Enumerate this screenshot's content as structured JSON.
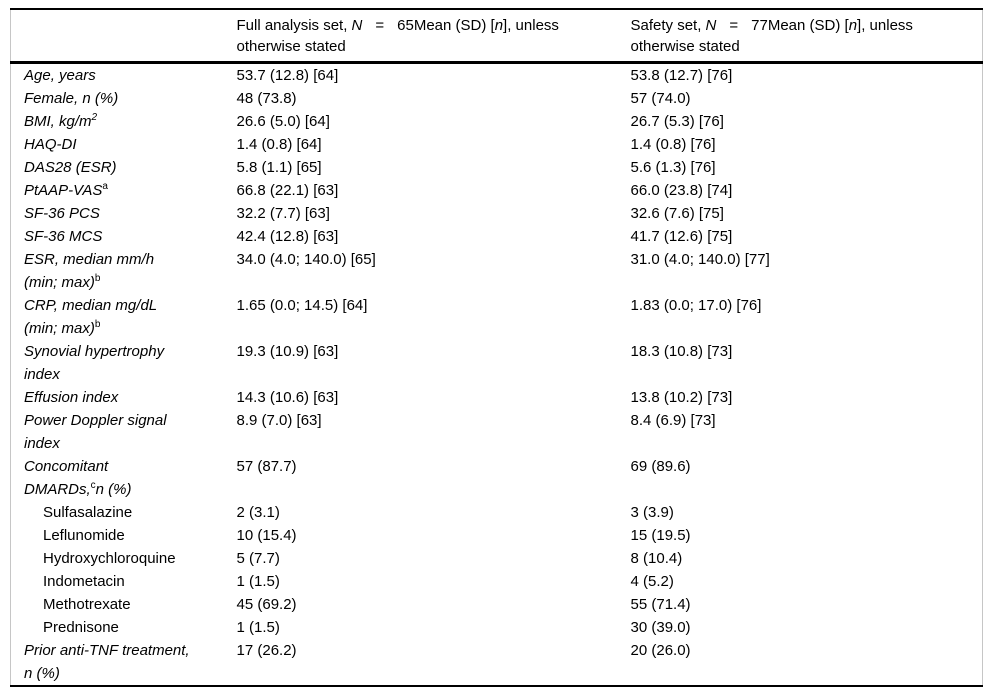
{
  "table": {
    "description": "Baseline characteristics table",
    "header": {
      "col1_parts": [],
      "col2_parts": [
        {
          "t": "Full analysis set, "
        },
        {
          "t": "N",
          "i": true
        },
        {
          "t": "=",
          "eq": true
        },
        {
          "t": "65Mean (SD) ["
        },
        {
          "t": "n",
          "i": true
        },
        {
          "t": "], unless"
        },
        {
          "br": true
        },
        {
          "t": "otherwise stated"
        }
      ],
      "col3_parts": [
        {
          "t": "Safety set, "
        },
        {
          "t": "N",
          "i": true
        },
        {
          "t": "=",
          "eq": true
        },
        {
          "t": "77Mean (SD) ["
        },
        {
          "t": "n",
          "i": true
        },
        {
          "t": "], unless"
        },
        {
          "br": true
        },
        {
          "t": "otherwise stated"
        }
      ]
    },
    "rows": [
      {
        "label_parts": [
          {
            "t": "Age, years",
            "i": true
          }
        ],
        "indent": false,
        "values": [
          "53.7 (12.8) [64]",
          "53.8 (12.7) [76]"
        ]
      },
      {
        "label_parts": [
          {
            "t": "Female, n (%)",
            "i": true
          }
        ],
        "indent": false,
        "values": [
          "48 (73.8)",
          "57 (74.0)"
        ]
      },
      {
        "label_parts": [
          {
            "t": "BMI, kg/m",
            "i": true
          },
          {
            "t": "2",
            "sup": true,
            "i": true
          }
        ],
        "indent": false,
        "values": [
          "26.6 (5.0) [64]",
          "26.7 (5.3) [76]"
        ]
      },
      {
        "label_parts": [
          {
            "t": "HAQ-DI",
            "i": true
          }
        ],
        "indent": false,
        "values": [
          "1.4 (0.8) [64]",
          "1.4 (0.8) [76]"
        ]
      },
      {
        "label_parts": [
          {
            "t": "DAS28 (ESR)",
            "i": true
          }
        ],
        "indent": false,
        "values": [
          "5.8 (1.1) [65]",
          "5.6 (1.3) [76]"
        ]
      },
      {
        "label_parts": [
          {
            "t": "PtAAP-VAS",
            "i": true
          },
          {
            "t": "a",
            "sup": true
          }
        ],
        "indent": false,
        "values": [
          "66.8 (22.1) [63]",
          "66.0 (23.8) [74]"
        ]
      },
      {
        "label_parts": [
          {
            "t": "SF-36 PCS",
            "i": true
          }
        ],
        "indent": false,
        "values": [
          "32.2 (7.7) [63]",
          "32.6 (7.6) [75]"
        ]
      },
      {
        "label_parts": [
          {
            "t": "SF-36 MCS",
            "i": true
          }
        ],
        "indent": false,
        "values": [
          "42.4 (12.8) [63]",
          "41.7 (12.6) [75]"
        ]
      },
      {
        "label_parts": [
          {
            "t": "ESR, median mm/h",
            "i": true
          },
          {
            "br": true
          },
          {
            "t": "(min; max)",
            "i": true
          },
          {
            "t": "b",
            "sup": true
          }
        ],
        "indent": false,
        "values": [
          "34.0 (4.0; 140.0) [65]",
          "31.0 (4.0; 140.0) [77]"
        ]
      },
      {
        "label_parts": [
          {
            "t": "CRP, median mg/dL",
            "i": true
          },
          {
            "br": true
          },
          {
            "t": "(min; max)",
            "i": true
          },
          {
            "t": "b",
            "sup": true
          }
        ],
        "indent": false,
        "values": [
          "1.65 (0.0; 14.5) [64]",
          "1.83 (0.0; 17.0) [76]"
        ]
      },
      {
        "label_parts": [
          {
            "t": "Synovial hypertrophy",
            "i": true
          },
          {
            "br": true
          },
          {
            "t": "index",
            "i": true
          }
        ],
        "indent": false,
        "values": [
          "19.3 (10.9) [63]",
          "18.3 (10.8) [73]"
        ]
      },
      {
        "label_parts": [
          {
            "t": "Effusion index",
            "i": true
          }
        ],
        "indent": false,
        "values": [
          "14.3 (10.6) [63]",
          "13.8 (10.2) [73]"
        ]
      },
      {
        "label_parts": [
          {
            "t": "Power Doppler signal",
            "i": true
          },
          {
            "br": true
          },
          {
            "t": "index",
            "i": true
          }
        ],
        "indent": false,
        "values": [
          "8.9 (7.0) [63]",
          "8.4 (6.9) [73]"
        ]
      },
      {
        "label_parts": [
          {
            "t": "Concomitant",
            "i": true
          },
          {
            "br": true
          },
          {
            "t": "DMARDs,",
            "i": true
          },
          {
            "t": "c",
            "sup": true
          },
          {
            "t": "n (%)",
            "i": true
          }
        ],
        "indent": false,
        "values": [
          "57 (87.7)",
          "69 (89.6)"
        ]
      },
      {
        "label_parts": [
          {
            "t": "Sulfasalazine"
          }
        ],
        "indent": true,
        "values": [
          "2 (3.1)",
          "3 (3.9)"
        ]
      },
      {
        "label_parts": [
          {
            "t": "Leflunomide"
          }
        ],
        "indent": true,
        "values": [
          "10 (15.4)",
          "15 (19.5)"
        ]
      },
      {
        "label_parts": [
          {
            "t": "Hydroxychloroquine"
          }
        ],
        "indent": true,
        "values": [
          "5 (7.7)",
          "8 (10.4)"
        ]
      },
      {
        "label_parts": [
          {
            "t": "Indometacin"
          }
        ],
        "indent": true,
        "values": [
          "1 (1.5)",
          "4 (5.2)"
        ]
      },
      {
        "label_parts": [
          {
            "t": "Methotrexate"
          }
        ],
        "indent": true,
        "values": [
          "45 (69.2)",
          "55 (71.4)"
        ]
      },
      {
        "label_parts": [
          {
            "t": "Prednisone"
          }
        ],
        "indent": true,
        "values": [
          "1 (1.5)",
          "30 (39.0)"
        ]
      },
      {
        "label_parts": [
          {
            "t": "Prior anti-TNF treatment,",
            "i": true
          },
          {
            "br": true
          },
          {
            "t": "n (%)",
            "i": true
          }
        ],
        "indent": false,
        "values": [
          "17 (26.2)",
          "20 (26.0)"
        ]
      }
    ],
    "colors": {
      "rule_color": "#000000",
      "side_border_color": "#c6c6c6",
      "text_color": "#000000",
      "background": "#ffffff"
    }
  }
}
